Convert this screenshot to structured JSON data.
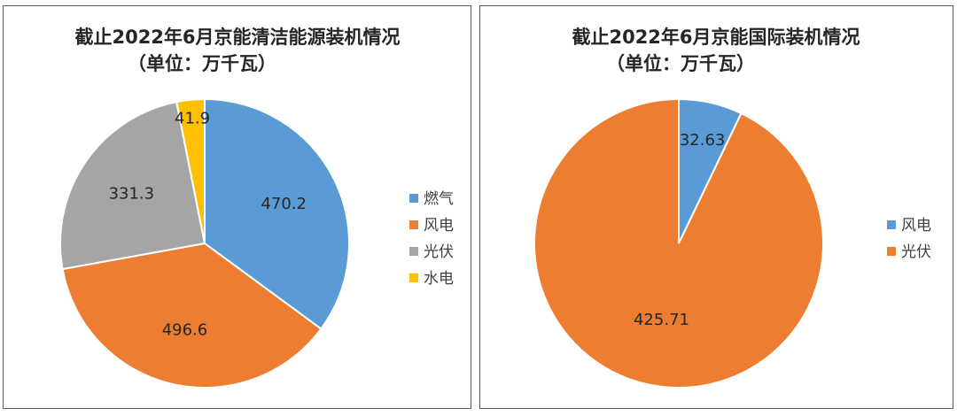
{
  "chart_data": [
    {
      "type": "pie",
      "title": "截止2022年6月京能清洁能源装机情况",
      "subtitle": "（单位：万千瓦）",
      "categories": [
        "燃气",
        "风电",
        "光伏",
        "水电"
      ],
      "values": [
        470.2,
        496.6,
        331.3,
        41.9
      ],
      "value_labels": [
        "470.2",
        "496.6",
        "331.3",
        "41.9"
      ],
      "colors": [
        "#5B9BD5",
        "#ED7D31",
        "#A5A5A5",
        "#FFC000"
      ],
      "legend_position": "right"
    },
    {
      "type": "pie",
      "title": "截止2022年6月京能国际装机情况",
      "subtitle": "（单位：万千瓦）",
      "categories": [
        "风电",
        "光伏"
      ],
      "values": [
        32.63,
        425.71
      ],
      "value_labels": [
        "32.63",
        "425.71"
      ],
      "colors": [
        "#5B9BD5",
        "#ED7D31"
      ],
      "legend_position": "right"
    }
  ]
}
